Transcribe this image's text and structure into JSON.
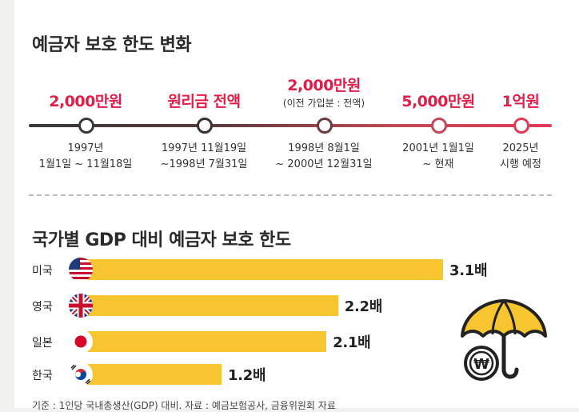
{
  "timeline": {
    "title": "예금자 보호 한도 변화",
    "milestones": [
      {
        "amount": "2,000만원",
        "note": "",
        "period": [
          "1997년",
          "1월1일 ~ 11월18일"
        ]
      },
      {
        "amount": "원리금 전액",
        "note": "",
        "period": [
          "1997년 11월19일",
          "~1998년 7월31일"
        ]
      },
      {
        "amount": "2,000만원",
        "note": "(이전 가입분 : 전액)",
        "period": [
          "1998년 8월1일",
          "~ 2000년 12월31일"
        ]
      },
      {
        "amount": "5,000만원",
        "note": "",
        "period": [
          "2001년 1월1일",
          "~ 현재"
        ]
      },
      {
        "amount": "1억원",
        "note": "",
        "period": [
          "2025년",
          "시행 예정"
        ]
      }
    ]
  },
  "gdp_section": {
    "title": "국가별 GDP 대비 예금자 보호 한도"
  },
  "chart_data": {
    "type": "bar",
    "orientation": "horizontal",
    "title": "국가별 GDP 대비 예금자 보호 한도",
    "categories": [
      "미국",
      "영국",
      "일본",
      "한국"
    ],
    "values": [
      3.1,
      2.2,
      2.1,
      1.2
    ],
    "value_labels": [
      "3.1배",
      "2.2배",
      "2.1배",
      "1.2배"
    ],
    "unit": "배",
    "bar_color": "#f6c530",
    "xlim": [
      0,
      3.1
    ]
  },
  "footnote": "기준 : 1인당 국내총생산(GDP) 대비. 자료 : 예금보험공사, 금융위원회 자료",
  "colors": {
    "accent": "#e11d48",
    "bar": "#f6c530",
    "line_start": "#3a3a3a",
    "line_end": "#e23a52"
  },
  "icons": [
    "us-flag-icon",
    "uk-flag-icon",
    "japan-flag-icon",
    "korea-flag-icon",
    "umbrella-won-icon"
  ]
}
